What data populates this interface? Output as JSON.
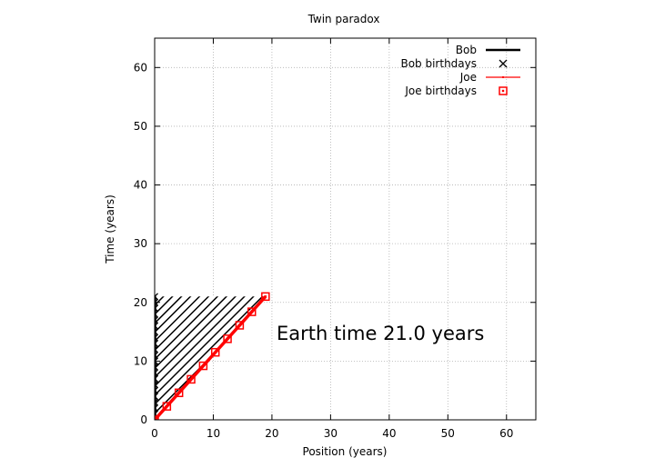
{
  "chart_data": {
    "type": "line",
    "title": "Twin paradox",
    "xlabel": "Position (years)",
    "ylabel": "Time (years)",
    "xlim": [
      0,
      65
    ],
    "ylim": [
      0,
      65
    ],
    "xticks": [
      0,
      10,
      20,
      30,
      40,
      50,
      60
    ],
    "yticks": [
      0,
      10,
      20,
      30,
      40,
      50,
      60
    ],
    "grid": true,
    "legend_position": "top-right",
    "annotation": "Earth time 21.0 years",
    "series": [
      {
        "name": "Bob",
        "kind": "line",
        "color": "#000000",
        "x": [
          0,
          0
        ],
        "y": [
          0,
          21
        ]
      },
      {
        "name": "Bob birthdays",
        "kind": "marker-x",
        "color": "#000000",
        "x": [
          0,
          0,
          0,
          0,
          0,
          0,
          0,
          0,
          0,
          0,
          0,
          0,
          0,
          0,
          0,
          0,
          0,
          0,
          0,
          0,
          0,
          0
        ],
        "y": [
          0,
          1,
          2,
          3,
          4,
          5,
          6,
          7,
          8,
          9,
          10,
          11,
          12,
          13,
          14,
          15,
          16,
          17,
          18,
          19,
          20,
          21
        ]
      },
      {
        "name": "Joe",
        "kind": "line",
        "color": "#ff0000",
        "x": [
          0,
          18.9
        ],
        "y": [
          0,
          21
        ]
      },
      {
        "name": "Joe birthdays",
        "kind": "marker-square",
        "color": "#ff0000",
        "x": [
          0,
          2.07,
          4.14,
          6.21,
          8.28,
          10.35,
          12.42,
          14.49,
          16.56,
          18.9
        ],
        "y": [
          0,
          2.3,
          4.6,
          6.9,
          9.2,
          11.5,
          13.8,
          16.1,
          18.4,
          21.0
        ]
      }
    ],
    "hatched_region": {
      "description_color": "#000000",
      "polygon_x": [
        0,
        18.9,
        0
      ],
      "polygon_y": [
        0,
        21,
        21
      ]
    }
  }
}
